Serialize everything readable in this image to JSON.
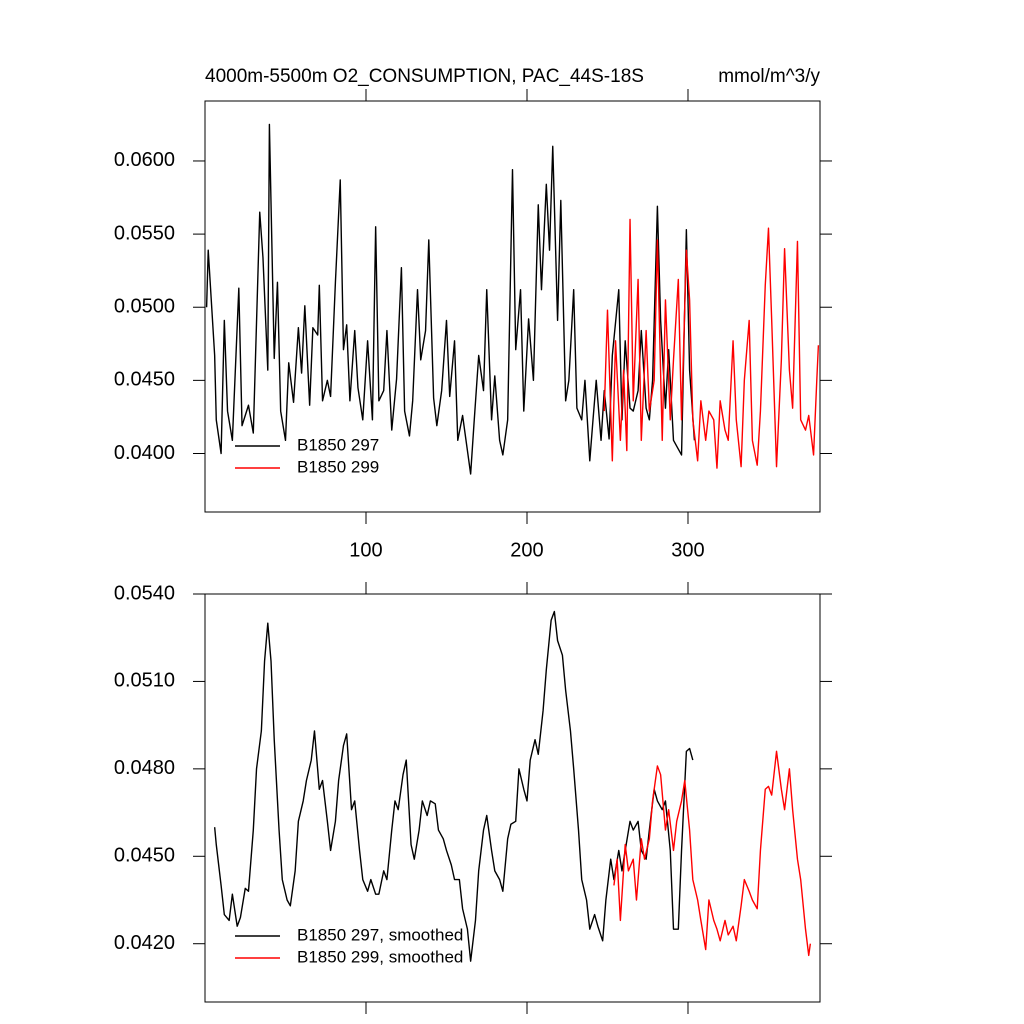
{
  "chart_data": [
    {
      "type": "line",
      "title": "4000m-5500m O2_CONSUMPTION, PAC_44S-18S",
      "units": "mmol/m^3/y",
      "xlim": [
        0,
        382
      ],
      "xticks": [
        100,
        200,
        300
      ],
      "ylim": [
        0.036,
        0.0641
      ],
      "yticks": [
        {
          "value": 0.04,
          "label": "0.0400"
        },
        {
          "value": 0.045,
          "label": "0.0450"
        },
        {
          "value": 0.05,
          "label": "0.0500"
        },
        {
          "value": 0.055,
          "label": "0.0550"
        },
        {
          "value": 0.06,
          "label": "0.0600"
        }
      ],
      "legend": "lower left",
      "series": [
        {
          "name": "B1850 297",
          "color": "#000000",
          "x": [
            1,
            2,
            6,
            7,
            10,
            12,
            14,
            17,
            21,
            23,
            27,
            30,
            34,
            36,
            39,
            40,
            43,
            45,
            47,
            50,
            52,
            55,
            58,
            60,
            62,
            65,
            67,
            70,
            71,
            73,
            76,
            78,
            81,
            84,
            86,
            88,
            90,
            93,
            95,
            98,
            101,
            104,
            106,
            108,
            111,
            113,
            116,
            119,
            122,
            124,
            127,
            129,
            132,
            134,
            137,
            139,
            142,
            144,
            147,
            150,
            152,
            155,
            157,
            160,
            163,
            165,
            167,
            170,
            173,
            175,
            178,
            180,
            183,
            185,
            188,
            191,
            193,
            196,
            198,
            201,
            204,
            207,
            209,
            212,
            214,
            216,
            219,
            221,
            224,
            226,
            229,
            231,
            234,
            236,
            239,
            241,
            243,
            246,
            248,
            251,
            253,
            257,
            259,
            261,
            264,
            266,
            269,
            271,
            274,
            276,
            278,
            281,
            283,
            286,
            288,
            291,
            293,
            296,
            299,
            301,
            304
          ],
          "values": [
            0.05,
            0.0539,
            0.0467,
            0.0423,
            0.04,
            0.0491,
            0.0429,
            0.0409,
            0.0513,
            0.0419,
            0.0433,
            0.0414,
            0.0565,
            0.0534,
            0.0457,
            0.0625,
            0.0465,
            0.0517,
            0.0429,
            0.0409,
            0.0462,
            0.0435,
            0.0486,
            0.0455,
            0.0501,
            0.0433,
            0.0486,
            0.0481,
            0.0515,
            0.0436,
            0.045,
            0.0439,
            0.0517,
            0.0587,
            0.0471,
            0.0488,
            0.0436,
            0.0484,
            0.0445,
            0.0423,
            0.0477,
            0.0423,
            0.0555,
            0.0436,
            0.0443,
            0.0484,
            0.0416,
            0.0451,
            0.0527,
            0.0429,
            0.0412,
            0.0436,
            0.0512,
            0.0464,
            0.0484,
            0.0546,
            0.0438,
            0.0419,
            0.0443,
            0.0491,
            0.0439,
            0.0477,
            0.0409,
            0.0426,
            0.0402,
            0.0386,
            0.0419,
            0.0467,
            0.0443,
            0.0512,
            0.0423,
            0.0453,
            0.0409,
            0.0399,
            0.0423,
            0.0594,
            0.0471,
            0.0512,
            0.0429,
            0.0492,
            0.045,
            0.057,
            0.0512,
            0.0584,
            0.0539,
            0.061,
            0.0491,
            0.0573,
            0.0436,
            0.045,
            0.0512,
            0.0431,
            0.0423,
            0.045,
            0.0395,
            0.0423,
            0.045,
            0.0409,
            0.0443,
            0.041,
            0.0467,
            0.0512,
            0.0423,
            0.0477,
            0.0431,
            0.0429,
            0.0443,
            0.0484,
            0.0431,
            0.0423,
            0.045,
            0.0569,
            0.0491,
            0.0431,
            0.0471,
            0.0409,
            0.0405,
            0.0399,
            0.0553,
            0.0457,
            0.0409
          ]
        },
        {
          "name": "B1850 299",
          "color": "#ff0000",
          "x": [
            248,
            250,
            253,
            255,
            258,
            260,
            262,
            264,
            266,
            269,
            271,
            274,
            276,
            279,
            281,
            284,
            286,
            289,
            291,
            294,
            296,
            299,
            301,
            303,
            306,
            308,
            311,
            313,
            316,
            318,
            320,
            323,
            325,
            328,
            330,
            333,
            335,
            338,
            340,
            343,
            345,
            348,
            350,
            352,
            355,
            358,
            360,
            363,
            365,
            368,
            370,
            373,
            375,
            378,
            380,
            381
          ],
          "values": [
            0.0429,
            0.0498,
            0.0395,
            0.0477,
            0.0409,
            0.0457,
            0.0402,
            0.056,
            0.0436,
            0.0519,
            0.0409,
            0.0484,
            0.0429,
            0.045,
            0.0546,
            0.0409,
            0.0505,
            0.0423,
            0.0464,
            0.0519,
            0.0423,
            0.0539,
            0.0505,
            0.0423,
            0.0395,
            0.0436,
            0.0409,
            0.0429,
            0.0423,
            0.039,
            0.0436,
            0.0416,
            0.0409,
            0.0477,
            0.0423,
            0.0391,
            0.045,
            0.0491,
            0.0409,
            0.0392,
            0.0429,
            0.0515,
            0.0554,
            0.0491,
            0.0391,
            0.0464,
            0.054,
            0.0457,
            0.0431,
            0.0545,
            0.0423,
            0.0416,
            0.0426,
            0.0399,
            0.045,
            0.0474
          ]
        }
      ]
    },
    {
      "type": "line",
      "xlim": [
        0,
        382
      ],
      "ylim": [
        0.04,
        0.054
      ],
      "yticks": [
        {
          "value": 0.042,
          "label": "0.0420"
        },
        {
          "value": 0.045,
          "label": "0.0450"
        },
        {
          "value": 0.048,
          "label": "0.0480"
        },
        {
          "value": 0.051,
          "label": "0.0510"
        },
        {
          "value": 0.054,
          "label": "0.0540"
        }
      ],
      "legend": "lower left",
      "series": [
        {
          "name": "B1850 297, smoothed",
          "color": "#000000",
          "x": [
            6,
            7,
            10,
            12,
            15,
            17,
            20,
            22,
            25,
            27,
            30,
            32,
            35,
            37,
            39,
            41,
            43,
            46,
            48,
            51,
            53,
            56,
            58,
            61,
            63,
            66,
            68,
            71,
            73,
            76,
            78,
            81,
            83,
            86,
            88,
            91,
            93,
            96,
            98,
            101,
            103,
            106,
            108,
            111,
            113,
            116,
            118,
            120,
            123,
            125,
            128,
            130,
            133,
            135,
            138,
            140,
            143,
            145,
            148,
            150,
            153,
            155,
            158,
            160,
            163,
            165,
            168,
            170,
            173,
            175,
            178,
            180,
            183,
            185,
            188,
            190,
            193,
            195,
            198,
            200,
            202,
            205,
            207,
            210,
            212,
            215,
            217,
            219,
            222,
            224,
            227,
            229,
            232,
            234,
            237,
            239,
            242,
            244,
            247,
            249,
            252,
            254,
            257,
            259,
            261,
            264,
            266,
            269,
            271,
            274,
            276,
            279,
            281,
            284,
            286,
            289,
            291,
            294,
            296,
            299,
            301,
            303
          ],
          "values": [
            0.046,
            0.0454,
            0.044,
            0.043,
            0.0428,
            0.0437,
            0.0426,
            0.0429,
            0.0439,
            0.0438,
            0.0459,
            0.048,
            0.0493,
            0.0517,
            0.053,
            0.0517,
            0.049,
            0.0459,
            0.0442,
            0.0435,
            0.0433,
            0.0445,
            0.0462,
            0.0469,
            0.0476,
            0.0483,
            0.0493,
            0.0473,
            0.0476,
            0.0462,
            0.0452,
            0.0462,
            0.0476,
            0.0488,
            0.0492,
            0.0466,
            0.0469,
            0.0452,
            0.0442,
            0.0438,
            0.0442,
            0.0437,
            0.0437,
            0.0445,
            0.0442,
            0.0459,
            0.0469,
            0.0466,
            0.0478,
            0.0483,
            0.0454,
            0.0449,
            0.0459,
            0.0469,
            0.0464,
            0.0469,
            0.0468,
            0.0459,
            0.0456,
            0.0452,
            0.0447,
            0.0442,
            0.0442,
            0.0432,
            0.0425,
            0.0414,
            0.0428,
            0.0445,
            0.0459,
            0.0464,
            0.0452,
            0.0445,
            0.0442,
            0.0438,
            0.0456,
            0.0461,
            0.0462,
            0.048,
            0.0473,
            0.0469,
            0.0483,
            0.049,
            0.0485,
            0.05,
            0.0514,
            0.0531,
            0.0534,
            0.0524,
            0.0519,
            0.0507,
            0.0493,
            0.048,
            0.0459,
            0.0442,
            0.0435,
            0.0425,
            0.043,
            0.0426,
            0.0421,
            0.0435,
            0.0449,
            0.0442,
            0.0452,
            0.0445,
            0.0452,
            0.0462,
            0.0459,
            0.0462,
            0.0452,
            0.0449,
            0.0459,
            0.0473,
            0.0469,
            0.0466,
            0.0469,
            0.0452,
            0.0425,
            0.0425,
            0.0452,
            0.0486,
            0.0487,
            0.0483
          ]
        },
        {
          "name": "B1850 299, smoothed",
          "color": "#ff0000",
          "x": [
            254,
            256,
            258,
            261,
            263,
            266,
            268,
            271,
            273,
            276,
            278,
            281,
            283,
            286,
            288,
            291,
            293,
            296,
            298,
            301,
            303,
            306,
            308,
            311,
            313,
            316,
            318,
            320,
            323,
            325,
            328,
            330,
            333,
            335,
            338,
            340,
            343,
            345,
            348,
            350,
            352,
            355,
            358,
            360,
            363,
            365,
            368,
            370,
            373,
            375,
            376
          ],
          "values": [
            0.044,
            0.0449,
            0.0428,
            0.0454,
            0.0445,
            0.0449,
            0.0435,
            0.0456,
            0.0449,
            0.0456,
            0.0469,
            0.0481,
            0.0478,
            0.0459,
            0.0466,
            0.0452,
            0.0462,
            0.0469,
            0.0476,
            0.0459,
            0.0442,
            0.0435,
            0.0428,
            0.0418,
            0.0435,
            0.0428,
            0.0425,
            0.0421,
            0.0428,
            0.0423,
            0.0426,
            0.0421,
            0.0433,
            0.0442,
            0.0438,
            0.0435,
            0.0432,
            0.0452,
            0.0473,
            0.0474,
            0.0471,
            0.0486,
            0.0473,
            0.0466,
            0.048,
            0.0466,
            0.0449,
            0.0442,
            0.0425,
            0.0416,
            0.042
          ]
        }
      ]
    }
  ]
}
